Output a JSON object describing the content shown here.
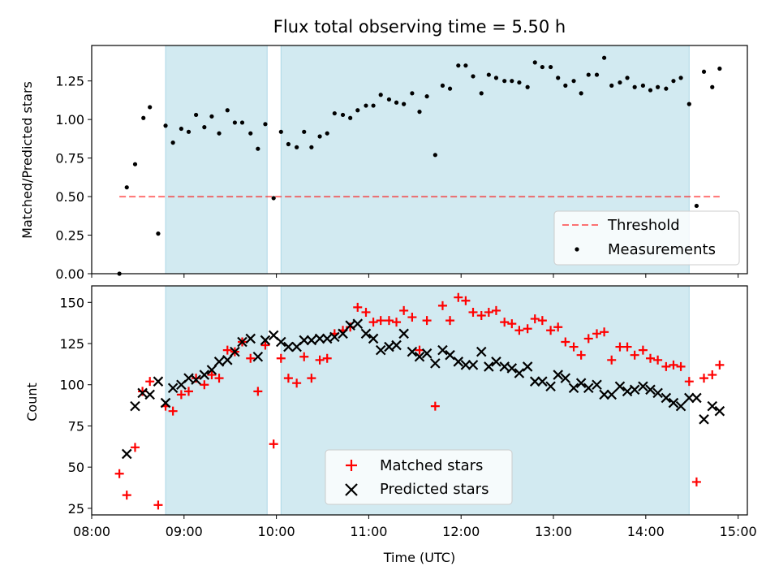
{
  "title": "Flux total observing time = 5.50 h",
  "colors": {
    "band": "#add8e6",
    "threshold": "#ff0000",
    "measurement": "#000000",
    "matched": "#ff0000",
    "predicted": "#000000"
  },
  "chart_data": [
    {
      "type": "scatter",
      "ylabel": "Matched/Predicted stars",
      "xlim": [
        8.0,
        15.1
      ],
      "ylim": [
        0,
        1.48
      ],
      "yticks": [
        "0.00",
        "0.25",
        "0.50",
        "0.75",
        "1.00",
        "1.25"
      ],
      "grid": false,
      "legend_position": "lower right",
      "legend": {
        "threshold": "Threshold",
        "measurements": "Measurements"
      },
      "threshold": {
        "name": "Threshold",
        "value": 0.5,
        "x_range": [
          8.3,
          14.8
        ]
      },
      "shaded_intervals": [
        [
          8.8,
          9.9
        ],
        [
          10.05,
          14.47
        ]
      ],
      "series": [
        {
          "name": "Measurements",
          "points": [
            [
              8.3,
              0.0
            ],
            [
              8.38,
              0.56
            ],
            [
              8.47,
              0.71
            ],
            [
              8.56,
              1.01
            ],
            [
              8.63,
              1.08
            ],
            [
              8.72,
              0.26
            ],
            [
              8.8,
              0.96
            ],
            [
              8.88,
              0.85
            ],
            [
              8.97,
              0.94
            ],
            [
              9.05,
              0.92
            ],
            [
              9.13,
              1.03
            ],
            [
              9.22,
              0.95
            ],
            [
              9.3,
              1.02
            ],
            [
              9.38,
              0.91
            ],
            [
              9.47,
              1.06
            ],
            [
              9.55,
              0.98
            ],
            [
              9.63,
              0.98
            ],
            [
              9.72,
              0.91
            ],
            [
              9.8,
              0.81
            ],
            [
              9.88,
              0.97
            ],
            [
              9.97,
              0.49
            ],
            [
              10.05,
              0.92
            ],
            [
              10.13,
              0.84
            ],
            [
              10.22,
              0.82
            ],
            [
              10.3,
              0.92
            ],
            [
              10.38,
              0.82
            ],
            [
              10.47,
              0.89
            ],
            [
              10.55,
              0.91
            ],
            [
              10.63,
              1.04
            ],
            [
              10.72,
              1.03
            ],
            [
              10.8,
              1.01
            ],
            [
              10.88,
              1.06
            ],
            [
              10.97,
              1.09
            ],
            [
              11.05,
              1.09
            ],
            [
              11.13,
              1.16
            ],
            [
              11.22,
              1.13
            ],
            [
              11.3,
              1.11
            ],
            [
              11.38,
              1.1
            ],
            [
              11.47,
              1.17
            ],
            [
              11.55,
              1.05
            ],
            [
              11.63,
              1.15
            ],
            [
              11.72,
              0.77
            ],
            [
              11.8,
              1.22
            ],
            [
              11.88,
              1.2
            ],
            [
              11.97,
              1.35
            ],
            [
              12.05,
              1.35
            ],
            [
              12.13,
              1.28
            ],
            [
              12.22,
              1.17
            ],
            [
              12.3,
              1.29
            ],
            [
              12.38,
              1.27
            ],
            [
              12.47,
              1.25
            ],
            [
              12.55,
              1.25
            ],
            [
              12.63,
              1.24
            ],
            [
              12.72,
              1.21
            ],
            [
              12.8,
              1.37
            ],
            [
              12.88,
              1.34
            ],
            [
              12.97,
              1.34
            ],
            [
              13.05,
              1.27
            ],
            [
              13.13,
              1.22
            ],
            [
              13.22,
              1.25
            ],
            [
              13.3,
              1.17
            ],
            [
              13.38,
              1.29
            ],
            [
              13.47,
              1.29
            ],
            [
              13.55,
              1.4
            ],
            [
              13.63,
              1.22
            ],
            [
              13.72,
              1.24
            ],
            [
              13.8,
              1.27
            ],
            [
              13.88,
              1.21
            ],
            [
              13.97,
              1.22
            ],
            [
              14.05,
              1.19
            ],
            [
              14.13,
              1.21
            ],
            [
              14.22,
              1.2
            ],
            [
              14.3,
              1.25
            ],
            [
              14.38,
              1.27
            ],
            [
              14.47,
              1.1
            ],
            [
              14.55,
              0.44
            ],
            [
              14.63,
              1.31
            ],
            [
              14.72,
              1.21
            ],
            [
              14.8,
              1.33
            ]
          ]
        }
      ]
    },
    {
      "type": "scatter",
      "xlabel": "Time (UTC)",
      "ylabel": "Count",
      "xlim": [
        8.0,
        15.1
      ],
      "ylim": [
        21,
        160
      ],
      "yticks": [
        "25",
        "50",
        "75",
        "100",
        "125",
        "150"
      ],
      "xticks": [
        "08:00",
        "09:00",
        "10:00",
        "11:00",
        "12:00",
        "13:00",
        "14:00",
        "15:00"
      ],
      "grid": false,
      "legend_position": "lower center",
      "shaded_intervals": [
        [
          8.8,
          9.9
        ],
        [
          10.05,
          14.47
        ]
      ],
      "series": [
        {
          "name": "Matched stars",
          "marker": "+",
          "points": [
            [
              8.3,
              46
            ],
            [
              8.38,
              33
            ],
            [
              8.47,
              62
            ],
            [
              8.55,
              96
            ],
            [
              8.63,
              102
            ],
            [
              8.72,
              27
            ],
            [
              8.8,
              87
            ],
            [
              8.88,
              84
            ],
            [
              8.97,
              94
            ],
            [
              9.05,
              96
            ],
            [
              9.13,
              104
            ],
            [
              9.22,
              100
            ],
            [
              9.3,
              106
            ],
            [
              9.38,
              104
            ],
            [
              9.47,
              121
            ],
            [
              9.55,
              120
            ],
            [
              9.63,
              126
            ],
            [
              9.72,
              116
            ],
            [
              9.8,
              96
            ],
            [
              9.88,
              124
            ],
            [
              9.97,
              64
            ],
            [
              10.05,
              116
            ],
            [
              10.13,
              104
            ],
            [
              10.22,
              101
            ],
            [
              10.3,
              117
            ],
            [
              10.38,
              104
            ],
            [
              10.47,
              115
            ],
            [
              10.55,
              116
            ],
            [
              10.63,
              131
            ],
            [
              10.72,
              133
            ],
            [
              10.8,
              135
            ],
            [
              10.88,
              147
            ],
            [
              10.97,
              144
            ],
            [
              11.05,
              138
            ],
            [
              11.13,
              139
            ],
            [
              11.22,
              139
            ],
            [
              11.3,
              138
            ],
            [
              11.38,
              145
            ],
            [
              11.47,
              141
            ],
            [
              11.55,
              121
            ],
            [
              11.63,
              139
            ],
            [
              11.72,
              87
            ],
            [
              11.8,
              148
            ],
            [
              11.88,
              139
            ],
            [
              11.97,
              153
            ],
            [
              12.05,
              151
            ],
            [
              12.13,
              144
            ],
            [
              12.22,
              142
            ],
            [
              12.3,
              144
            ],
            [
              12.38,
              145
            ],
            [
              12.47,
              138
            ],
            [
              12.55,
              137
            ],
            [
              12.63,
              133
            ],
            [
              12.72,
              134
            ],
            [
              12.8,
              140
            ],
            [
              12.88,
              139
            ],
            [
              12.97,
              133
            ],
            [
              13.05,
              135
            ],
            [
              13.13,
              126
            ],
            [
              13.22,
              123
            ],
            [
              13.3,
              118
            ],
            [
              13.38,
              128
            ],
            [
              13.47,
              131
            ],
            [
              13.55,
              132
            ],
            [
              13.63,
              115
            ],
            [
              13.72,
              123
            ],
            [
              13.8,
              123
            ],
            [
              13.88,
              118
            ],
            [
              13.97,
              121
            ],
            [
              14.05,
              116
            ],
            [
              14.13,
              115
            ],
            [
              14.22,
              111
            ],
            [
              14.3,
              112
            ],
            [
              14.38,
              111
            ],
            [
              14.47,
              102
            ],
            [
              14.55,
              41
            ],
            [
              14.63,
              104
            ],
            [
              14.72,
              106
            ],
            [
              14.8,
              112
            ]
          ]
        },
        {
          "name": "Predicted stars",
          "marker": "x",
          "points": [
            [
              8.38,
              58
            ],
            [
              8.47,
              87
            ],
            [
              8.55,
              95
            ],
            [
              8.63,
              94
            ],
            [
              8.72,
              102
            ],
            [
              8.8,
              89
            ],
            [
              8.88,
              98
            ],
            [
              8.97,
              100
            ],
            [
              9.05,
              104
            ],
            [
              9.13,
              103
            ],
            [
              9.22,
              106
            ],
            [
              9.3,
              109
            ],
            [
              9.38,
              114
            ],
            [
              9.47,
              115
            ],
            [
              9.55,
              120
            ],
            [
              9.63,
              126
            ],
            [
              9.72,
              128
            ],
            [
              9.8,
              117
            ],
            [
              9.88,
              127
            ],
            [
              9.97,
              130
            ],
            [
              10.05,
              126
            ],
            [
              10.13,
              123
            ],
            [
              10.22,
              123
            ],
            [
              10.3,
              127
            ],
            [
              10.38,
              127
            ],
            [
              10.47,
              128
            ],
            [
              10.55,
              128
            ],
            [
              10.63,
              129
            ],
            [
              10.72,
              131
            ],
            [
              10.8,
              136
            ],
            [
              10.88,
              137
            ],
            [
              10.97,
              131
            ],
            [
              11.05,
              128
            ],
            [
              11.13,
              121
            ],
            [
              11.22,
              123
            ],
            [
              11.3,
              124
            ],
            [
              11.38,
              131
            ],
            [
              11.47,
              120
            ],
            [
              11.55,
              117
            ],
            [
              11.63,
              119
            ],
            [
              11.72,
              113
            ],
            [
              11.8,
              121
            ],
            [
              11.88,
              118
            ],
            [
              11.97,
              114
            ],
            [
              12.05,
              112
            ],
            [
              12.13,
              112
            ],
            [
              12.22,
              120
            ],
            [
              12.3,
              111
            ],
            [
              12.38,
              114
            ],
            [
              12.47,
              111
            ],
            [
              12.55,
              110
            ],
            [
              12.63,
              107
            ],
            [
              12.72,
              111
            ],
            [
              12.8,
              102
            ],
            [
              12.88,
              102
            ],
            [
              12.97,
              99
            ],
            [
              13.05,
              106
            ],
            [
              13.13,
              104
            ],
            [
              13.22,
              98
            ],
            [
              13.3,
              101
            ],
            [
              13.38,
              98
            ],
            [
              13.47,
              100
            ],
            [
              13.55,
              94
            ],
            [
              13.63,
              94
            ],
            [
              13.72,
              99
            ],
            [
              13.8,
              96
            ],
            [
              13.88,
              97
            ],
            [
              13.97,
              99
            ],
            [
              14.05,
              97
            ],
            [
              14.13,
              95
            ],
            [
              14.22,
              92
            ],
            [
              14.3,
              89
            ],
            [
              14.38,
              87
            ],
            [
              14.47,
              92
            ],
            [
              14.55,
              92
            ],
            [
              14.63,
              79
            ],
            [
              14.72,
              87
            ],
            [
              14.8,
              84
            ]
          ]
        }
      ]
    }
  ]
}
